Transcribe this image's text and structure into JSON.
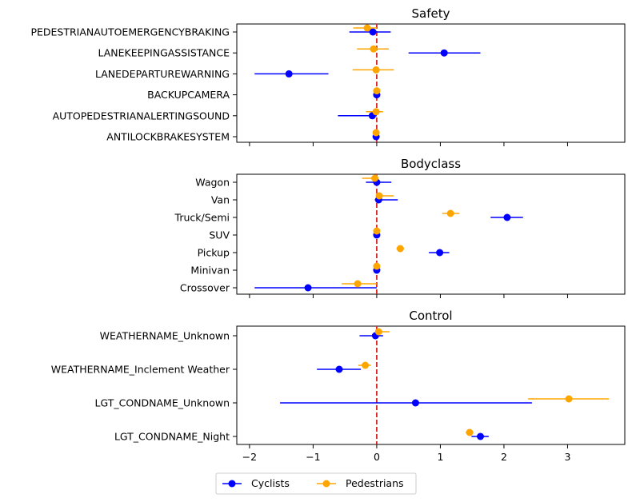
{
  "legend": {
    "placement": "bottom-center",
    "entries": [
      {
        "label": "Cyclists",
        "color": "#0000ff"
      },
      {
        "label": "Pedestrians",
        "color": "#ffa500"
      }
    ]
  },
  "colors": {
    "zero_line": "#d62728",
    "cyclists": "#0000ff",
    "pedestrians": "#ffa500"
  },
  "chart_data": [
    {
      "type": "scatter",
      "title": "Safety",
      "xlim": [
        -2.2,
        3.9
      ],
      "x_ticks": [],
      "grid": false,
      "categories": [
        "PEDESTRIANAUTOEMERGENCYBRAKING",
        "LANEKEEPINGASSISTANCE",
        "LANEDEPARTUREWARNING",
        "BACKUPCAMERA",
        "AUTOPEDESTRIANALERTINGSOUND",
        "ANTILOCKBRAKESYSTEM"
      ],
      "series": [
        {
          "name": "Cyclists",
          "estimates": [
            -0.06,
            1.06,
            -1.38,
            0.0,
            -0.07,
            -0.01
          ],
          "lower": [
            -0.43,
            0.5,
            -1.92,
            -0.01,
            -0.61,
            -0.02
          ],
          "upper": [
            0.22,
            1.63,
            -0.76,
            0.01,
            0.0,
            0.0
          ]
        },
        {
          "name": "Pedestrians",
          "estimates": [
            -0.15,
            -0.05,
            -0.01,
            0.0,
            -0.01,
            -0.01
          ],
          "lower": [
            -0.37,
            -0.31,
            -0.38,
            -0.01,
            -0.17,
            -0.02
          ],
          "upper": [
            0.0,
            0.19,
            0.27,
            0.01,
            0.1,
            0.0
          ]
        }
      ]
    },
    {
      "type": "scatter",
      "title": "Bodyclass",
      "xlim": [
        -2.2,
        3.9
      ],
      "x_ticks": [],
      "grid": false,
      "categories": [
        "Wagon",
        "Van",
        "Truck/Semi",
        "SUV",
        "Pickup",
        "Minivan",
        "Crossover"
      ],
      "series": [
        {
          "name": "Cyclists",
          "estimates": [
            0.0,
            0.03,
            2.05,
            0.0,
            0.99,
            0.0,
            -1.08
          ],
          "lower": [
            -0.17,
            -0.03,
            1.79,
            -0.01,
            0.82,
            -0.01,
            -1.92
          ],
          "upper": [
            0.23,
            0.33,
            2.3,
            0.01,
            1.14,
            0.01,
            0.0
          ]
        },
        {
          "name": "Pedestrians",
          "estimates": [
            -0.03,
            0.04,
            1.16,
            0.0,
            0.37,
            0.0,
            -0.3
          ],
          "lower": [
            -0.23,
            -0.01,
            1.03,
            -0.01,
            0.31,
            -0.01,
            -0.55
          ],
          "upper": [
            0.0,
            0.27,
            1.3,
            0.01,
            0.43,
            0.01,
            0.0
          ]
        }
      ]
    },
    {
      "type": "scatter",
      "title": "Control",
      "xlim": [
        -2.2,
        3.9
      ],
      "x_ticks": [
        -2,
        -1,
        0,
        1,
        2,
        3
      ],
      "grid": false,
      "categories": [
        "WEATHERNAME_Unknown",
        "WEATHERNAME_Inclement Weather",
        "LGT_CONDNAME_Unknown",
        "LGT_CONDNAME_Night"
      ],
      "series": [
        {
          "name": "Cyclists",
          "estimates": [
            -0.02,
            -0.59,
            0.61,
            1.63
          ],
          "lower": [
            -0.27,
            -0.94,
            -1.52,
            1.49
          ],
          "upper": [
            0.1,
            -0.25,
            2.44,
            1.76
          ]
        },
        {
          "name": "Pedestrians",
          "estimates": [
            0.03,
            -0.18,
            3.02,
            1.46
          ],
          "lower": [
            0.0,
            -0.29,
            2.38,
            1.4
          ],
          "upper": [
            0.2,
            -0.09,
            3.65,
            1.52
          ]
        }
      ]
    }
  ]
}
